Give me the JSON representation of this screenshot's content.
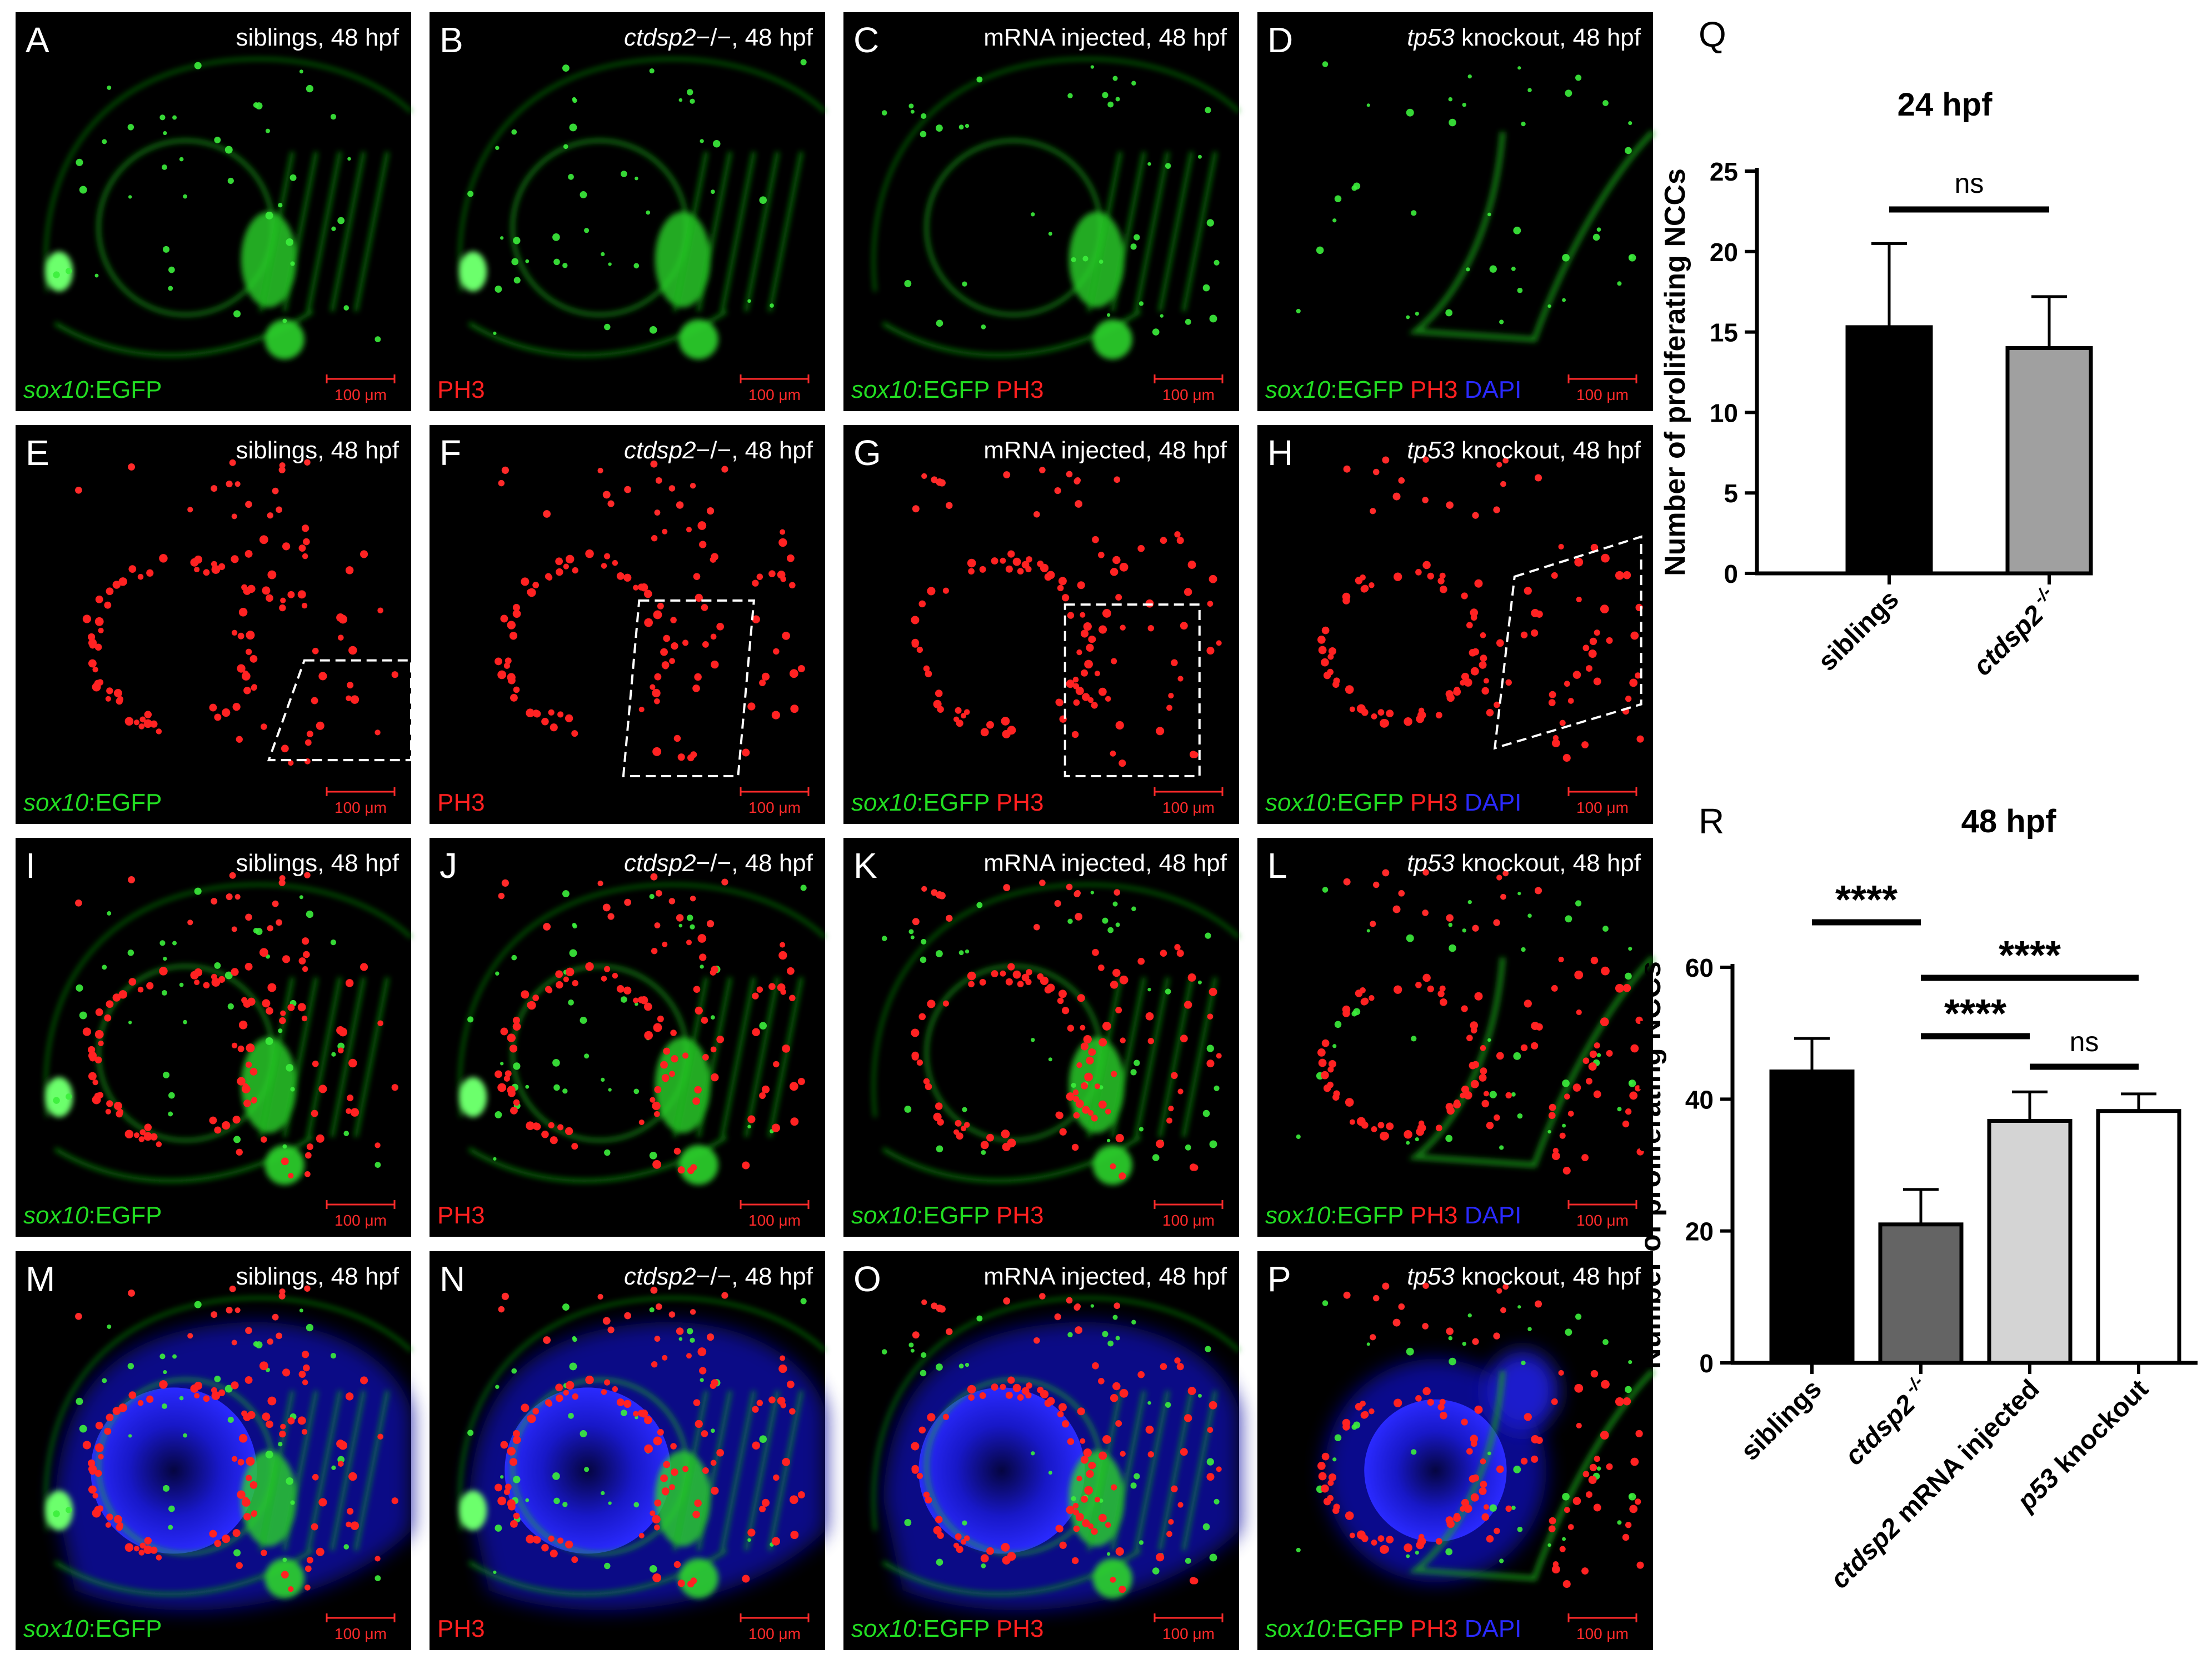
{
  "panels": [
    {
      "letter": "A",
      "caption_italic": "",
      "caption_rest": "siblings, 48 hpf",
      "label": [
        {
          "text": "sox10",
          "italic": true,
          "color": "#22dd22"
        },
        {
          "text": ":EGFP",
          "italic": false,
          "color": "#22dd22"
        }
      ],
      "scalebar": "100 μm",
      "signal": "green",
      "box": "none"
    },
    {
      "letter": "B",
      "caption_italic": "ctdsp2",
      "caption_rest": "−/−, 48 hpf",
      "label": [
        {
          "text": "PH3",
          "italic": false,
          "color": "#ff2020"
        }
      ],
      "scalebar": "100 μm",
      "signal": "green",
      "box": "none"
    },
    {
      "letter": "C",
      "caption_italic": "",
      "caption_rest": "mRNA injected, 48 hpf",
      "label": [
        {
          "text": "sox10",
          "italic": true,
          "color": "#22dd22"
        },
        {
          "text": ":EGFP ",
          "italic": false,
          "color": "#22dd22"
        },
        {
          "text": "PH3",
          "italic": false,
          "color": "#ff2020"
        }
      ],
      "scalebar": "100 μm",
      "signal": "green",
      "box": "none"
    },
    {
      "letter": "D",
      "caption_italic": "tp53",
      "caption_rest": " knockout, 48 hpf",
      "label": [
        {
          "text": "sox10",
          "italic": true,
          "color": "#22dd22"
        },
        {
          "text": ":EGFP ",
          "italic": false,
          "color": "#22dd22"
        },
        {
          "text": "PH3 ",
          "italic": false,
          "color": "#ff2020"
        },
        {
          "text": "DAPI",
          "italic": false,
          "color": "#2a2aff"
        }
      ],
      "scalebar": "100 μm",
      "signal": "green",
      "box": "none"
    },
    {
      "letter": "E",
      "caption_italic": "",
      "caption_rest": "siblings, 48 hpf",
      "label": [
        {
          "text": "sox10",
          "italic": true,
          "color": "#22dd22"
        },
        {
          "text": ":EGFP",
          "italic": false,
          "color": "#22dd22"
        }
      ],
      "scalebar": "100 μm",
      "signal": "red",
      "box": "E"
    },
    {
      "letter": "F",
      "caption_italic": "ctdsp2",
      "caption_rest": "−/−, 48 hpf",
      "label": [
        {
          "text": "PH3",
          "italic": false,
          "color": "#ff2020"
        }
      ],
      "scalebar": "100 μm",
      "signal": "red",
      "box": "F"
    },
    {
      "letter": "G",
      "caption_italic": "",
      "caption_rest": "mRNA injected, 48 hpf",
      "label": [
        {
          "text": "sox10",
          "italic": true,
          "color": "#22dd22"
        },
        {
          "text": ":EGFP ",
          "italic": false,
          "color": "#22dd22"
        },
        {
          "text": "PH3",
          "italic": false,
          "color": "#ff2020"
        }
      ],
      "scalebar": "100 μm",
      "signal": "red",
      "box": "G"
    },
    {
      "letter": "H",
      "caption_italic": "tp53",
      "caption_rest": " knockout, 48 hpf",
      "label": [
        {
          "text": "sox10",
          "italic": true,
          "color": "#22dd22"
        },
        {
          "text": ":EGFP ",
          "italic": false,
          "color": "#22dd22"
        },
        {
          "text": "PH3 ",
          "italic": false,
          "color": "#ff2020"
        },
        {
          "text": "DAPI",
          "italic": false,
          "color": "#2a2aff"
        }
      ],
      "scalebar": "100 μm",
      "signal": "red",
      "box": "H"
    },
    {
      "letter": "I",
      "caption_italic": "",
      "caption_rest": "siblings, 48 hpf",
      "label": [
        {
          "text": "sox10",
          "italic": true,
          "color": "#22dd22"
        },
        {
          "text": ":EGFP",
          "italic": false,
          "color": "#22dd22"
        }
      ],
      "scalebar": "100 μm",
      "signal": "merge",
      "box": "none"
    },
    {
      "letter": "J",
      "caption_italic": "ctdsp2",
      "caption_rest": "−/−, 48 hpf",
      "label": [
        {
          "text": "PH3",
          "italic": false,
          "color": "#ff2020"
        }
      ],
      "scalebar": "100 μm",
      "signal": "merge",
      "box": "none"
    },
    {
      "letter": "K",
      "caption_italic": "",
      "caption_rest": "mRNA injected, 48 hpf",
      "label": [
        {
          "text": "sox10",
          "italic": true,
          "color": "#22dd22"
        },
        {
          "text": ":EGFP ",
          "italic": false,
          "color": "#22dd22"
        },
        {
          "text": "PH3",
          "italic": false,
          "color": "#ff2020"
        }
      ],
      "scalebar": "100 μm",
      "signal": "merge",
      "box": "none"
    },
    {
      "letter": "L",
      "caption_italic": "tp53",
      "caption_rest": " knockout, 48 hpf",
      "label": [
        {
          "text": "sox10",
          "italic": true,
          "color": "#22dd22"
        },
        {
          "text": ":EGFP ",
          "italic": false,
          "color": "#22dd22"
        },
        {
          "text": "PH3 ",
          "italic": false,
          "color": "#ff2020"
        },
        {
          "text": "DAPI",
          "italic": false,
          "color": "#2a2aff"
        }
      ],
      "scalebar": "100 μm",
      "signal": "merge",
      "box": "none"
    },
    {
      "letter": "M",
      "caption_italic": "",
      "caption_rest": "siblings, 48 hpf",
      "label": [
        {
          "text": "sox10",
          "italic": true,
          "color": "#22dd22"
        },
        {
          "text": ":EGFP",
          "italic": false,
          "color": "#22dd22"
        }
      ],
      "scalebar": "100 μm",
      "signal": "dapi",
      "box": "none"
    },
    {
      "letter": "N",
      "caption_italic": "ctdsp2",
      "caption_rest": "−/−, 48 hpf",
      "label": [
        {
          "text": "PH3",
          "italic": false,
          "color": "#ff2020"
        }
      ],
      "scalebar": "100 μm",
      "signal": "dapi",
      "box": "none"
    },
    {
      "letter": "O",
      "caption_italic": "",
      "caption_rest": "mRNA injected, 48 hpf",
      "label": [
        {
          "text": "sox10",
          "italic": true,
          "color": "#22dd22"
        },
        {
          "text": ":EGFP ",
          "italic": false,
          "color": "#22dd22"
        },
        {
          "text": "PH3",
          "italic": false,
          "color": "#ff2020"
        }
      ],
      "scalebar": "100 μm",
      "signal": "dapi",
      "box": "none"
    },
    {
      "letter": "P",
      "caption_italic": "tp53",
      "caption_rest": " knockout, 48 hpf",
      "label": [
        {
          "text": "sox10",
          "italic": true,
          "color": "#22dd22"
        },
        {
          "text": ":EGFP ",
          "italic": false,
          "color": "#22dd22"
        },
        {
          "text": "PH3 ",
          "italic": false,
          "color": "#ff2020"
        },
        {
          "text": "DAPI",
          "italic": false,
          "color": "#2a2aff"
        }
      ],
      "scalebar": "100 μm",
      "signal": "dapi",
      "box": "none"
    }
  ],
  "chart_data": [
    {
      "panel_letter": "Q",
      "type": "bar",
      "title": "24 hpf",
      "ylabel": "Number of proliferating NCCs",
      "xlabel": "",
      "ylim": [
        0,
        25
      ],
      "yticks": [
        0,
        5,
        10,
        15,
        20,
        25
      ],
      "grid": false,
      "categories": [
        {
          "name": "siblings",
          "italic": false,
          "sup": ""
        },
        {
          "name": "ctdsp2",
          "italic": true,
          "sup": " -/-"
        }
      ],
      "values": [
        15.3,
        14.0
      ],
      "errors": [
        5.2,
        3.2
      ],
      "colors": [
        "#000000",
        "#a0a0a0"
      ],
      "significance": [
        {
          "from": 0,
          "to": 1,
          "label": "ns"
        }
      ]
    },
    {
      "panel_letter": "R",
      "type": "bar",
      "title": "48 hpf",
      "ylabel": "Number of proliferating NCCs",
      "xlabel": "",
      "ylim": [
        0,
        60
      ],
      "yticks": [
        0,
        20,
        40,
        60
      ],
      "grid": false,
      "categories": [
        {
          "name": "siblings",
          "italic": false,
          "sup": "",
          "suffix": ""
        },
        {
          "name": "ctdsp2",
          "italic": true,
          "sup": " -/-",
          "suffix": ""
        },
        {
          "name": "ctdsp2",
          "italic": true,
          "sup": "",
          "suffix": " mRNA injected"
        },
        {
          "name": "p53",
          "italic": true,
          "sup": "",
          "suffix": " knockout"
        }
      ],
      "values": [
        44.2,
        21.0,
        36.7,
        38.2
      ],
      "errors": [
        5.0,
        5.3,
        4.4,
        2.6
      ],
      "colors": [
        "#000000",
        "#646464",
        "#d4d4d4",
        "#ffffff"
      ],
      "significance": [
        {
          "from": 0,
          "to": 1,
          "label": "****"
        },
        {
          "from": 1,
          "to": 3,
          "label": "****"
        },
        {
          "from": 1,
          "to": 2,
          "label": "****"
        },
        {
          "from": 2,
          "to": 3,
          "label": "ns"
        }
      ]
    }
  ]
}
